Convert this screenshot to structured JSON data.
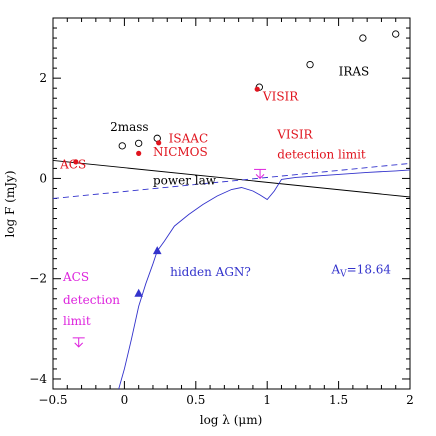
{
  "chart_data": {
    "type": "scatter",
    "title": "",
    "xlabel": "log λ (μm)",
    "ylabel": "log F (mJy)",
    "xlim": [
      -0.5,
      2.0
    ],
    "ylim": [
      -4.2,
      3.2
    ],
    "x_ticks": [
      -0.5,
      0,
      0.5,
      1,
      1.5,
      2
    ],
    "x_tick_labels": [
      "−0.5",
      "0",
      "0.5",
      "1",
      "1.5",
      "2"
    ],
    "y_ticks": [
      -4,
      -2,
      0,
      2
    ],
    "y_tick_labels": [
      "−4",
      "−2",
      "0",
      "2"
    ],
    "grid": false,
    "colors": {
      "red": "#e0141e",
      "blue": "#3333cc",
      "magenta": "#dd22dd",
      "black": "#000000"
    },
    "series": [
      {
        "points": [
          [
            -0.015,
            0.65
          ],
          [
            0.1,
            0.7
          ],
          [
            0.23,
            0.8
          ],
          [
            0.945,
            1.82
          ],
          [
            1.3,
            2.27
          ],
          [
            1.67,
            2.8
          ],
          [
            1.9,
            2.88
          ]
        ],
        "marker": "open-circle",
        "color": "black"
      },
      {
        "points": [
          [
            -0.34,
            0.33
          ],
          [
            0.1,
            0.5
          ],
          [
            0.24,
            0.71
          ],
          [
            0.93,
            1.78
          ]
        ],
        "marker": "filled-circle",
        "color": "red"
      },
      {
        "points": [
          [
            0.1,
            -2.3
          ],
          [
            0.23,
            -1.45
          ]
        ],
        "marker": "filled-triangle",
        "color": "blue"
      },
      {
        "points": [
          [
            -0.32,
            -3.18
          ],
          [
            0.95,
            0.18
          ]
        ],
        "marker": "upper-limit",
        "color": "magenta"
      }
    ],
    "lines": [
      {
        "style": "solid",
        "color": "black",
        "points": [
          [
            -0.5,
            0.36
          ],
          [
            2.0,
            -0.37
          ]
        ]
      },
      {
        "style": "dashed",
        "color": "blue",
        "points": [
          [
            -0.5,
            -0.4
          ],
          [
            2.0,
            0.3
          ]
        ]
      },
      {
        "style": "solid",
        "color": "blue",
        "points": [
          [
            -0.04,
            -4.2
          ],
          [
            0.0,
            -3.8
          ],
          [
            0.05,
            -3.2
          ],
          [
            0.1,
            -2.55
          ],
          [
            0.15,
            -2.1
          ],
          [
            0.2,
            -1.7
          ],
          [
            0.23,
            -1.45
          ],
          [
            0.28,
            -1.25
          ],
          [
            0.35,
            -0.95
          ],
          [
            0.45,
            -0.72
          ],
          [
            0.55,
            -0.52
          ],
          [
            0.65,
            -0.35
          ],
          [
            0.75,
            -0.22
          ],
          [
            0.82,
            -0.18
          ],
          [
            0.9,
            -0.25
          ],
          [
            0.95,
            -0.33
          ],
          [
            1.0,
            -0.42
          ],
          [
            1.05,
            -0.25
          ],
          [
            1.1,
            -0.02
          ],
          [
            1.2,
            0.02
          ],
          [
            1.35,
            0.05
          ],
          [
            1.5,
            0.08
          ],
          [
            1.7,
            0.12
          ],
          [
            1.9,
            0.15
          ],
          [
            2.0,
            0.17
          ]
        ]
      }
    ],
    "annotations": [
      {
        "text": "2mass",
        "x": -0.1,
        "y": 0.95,
        "color": "black",
        "anchor": "start"
      },
      {
        "text": "ISAAC",
        "x": 0.31,
        "y": 0.72,
        "color": "red",
        "anchor": "start"
      },
      {
        "text": "NICMOS",
        "x": 0.2,
        "y": 0.45,
        "color": "red",
        "anchor": "start"
      },
      {
        "text": "ACS",
        "x": -0.45,
        "y": 0.2,
        "color": "red",
        "anchor": "start"
      },
      {
        "text": "VISIR",
        "x": 0.97,
        "y": 1.55,
        "color": "red",
        "anchor": "start"
      },
      {
        "text": "IRAS",
        "x": 1.5,
        "y": 2.05,
        "color": "black",
        "anchor": "start"
      },
      {
        "text": "VISIR",
        "x": 1.07,
        "y": 0.8,
        "color": "red",
        "anchor": "start"
      },
      {
        "text": "detection limit",
        "x": 1.07,
        "y": 0.4,
        "color": "red",
        "anchor": "start"
      },
      {
        "text": "power law",
        "x": 0.2,
        "y": -0.12,
        "color": "black",
        "anchor": "start"
      },
      {
        "text": "hidden AGN?",
        "x": 0.32,
        "y": -1.95,
        "color": "blue",
        "anchor": "start"
      },
      {
        "text": "ACS",
        "x": -0.43,
        "y": -2.05,
        "color": "magenta",
        "anchor": "start"
      },
      {
        "text": "detection",
        "x": -0.43,
        "y": -2.5,
        "color": "magenta",
        "anchor": "start"
      },
      {
        "text": "limit",
        "x": -0.43,
        "y": -2.92,
        "color": "magenta",
        "anchor": "start"
      }
    ],
    "av_label": {
      "main": "A",
      "sub": "V",
      "rest": "=18.64",
      "x": 1.45,
      "y": -1.9,
      "color": "blue"
    }
  }
}
